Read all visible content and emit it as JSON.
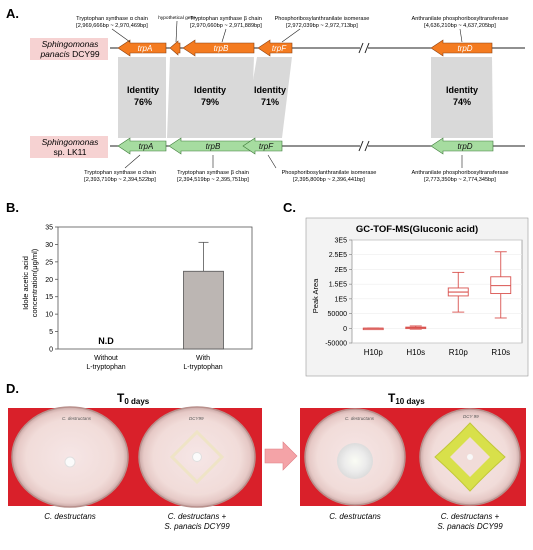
{
  "panel_a": {
    "panel_label": "A.",
    "top_strain": {
      "genus": "Sphingomonas",
      "species": "panacis",
      "strain": "DCY99"
    },
    "bottom_strain": {
      "genus": "Sphingomonas",
      "rest": "sp. LK11"
    },
    "top_genes": [
      {
        "name": "trpA",
        "desc": "Tryptophan synthase α chain",
        "coords": "[2,969,666bp ~ 2,970,469bp]"
      },
      {
        "name": "",
        "desc": "hypothetical gene",
        "coords": ""
      },
      {
        "name": "trpB",
        "desc": "Tryptophan synthase β chain",
        "coords": "[2,970,660bp ~ 2,971,889bp]"
      },
      {
        "name": "trpF",
        "desc": "Phosphoribosylanthranilate isomerase",
        "coords": "[2,972,039bp ~ 2,972,713bp]"
      },
      {
        "name": "trpD",
        "desc": "Anthranilate phosphoribosyltransferase",
        "coords": "[4,636,210bp ~ 4,637,205bp]"
      }
    ],
    "bottom_genes": [
      {
        "name": "trpA",
        "desc": "Tryptophan synthase α chain",
        "coords": "[2,393,710bp ~ 2,394,522bp]"
      },
      {
        "name": "trpB",
        "desc": "Tryptophan synthase β chain",
        "coords": "[2,394,519bp ~ 2,395,751bp]"
      },
      {
        "name": "trpF",
        "desc": "Phosphoribosylanthranilate isomerase",
        "coords": "[2,395,800bp ~ 2,396,441bp]"
      },
      {
        "name": "trpD",
        "desc": "Anthranilate phosphoribosyltransferase",
        "coords": "[2,773,350bp ~ 2,774,345bp]"
      }
    ],
    "identities": [
      {
        "label": "Identity",
        "value": "76%"
      },
      {
        "label": "Identity",
        "value": "79%"
      },
      {
        "label": "Identity",
        "value": "71%"
      },
      {
        "label": "Identity",
        "value": "74%"
      }
    ],
    "colors": {
      "top_arrow": "#f47b20",
      "bottom_arrow": "#a6dca0",
      "band": "#d9d9d9",
      "strain_bg": "#f6d2d2"
    }
  },
  "panel_b": {
    "panel_label": "B.",
    "chart_data": {
      "type": "bar",
      "ylabel_line1": "Idole acetic acid",
      "ylabel_line2": "concentration(μg/ml)",
      "ylim": [
        0,
        35
      ],
      "yticks": [
        0,
        5,
        10,
        15,
        20,
        25,
        30,
        35
      ],
      "categories": [
        {
          "line1": "Without",
          "line2": "L-tryptophan"
        },
        {
          "line1": "With",
          "line2": "L-tryptophan"
        }
      ],
      "values": [
        0,
        22.3
      ],
      "errors": [
        0,
        8.3
      ],
      "annotation": "N.D",
      "bar_color": "#bcb6b3"
    }
  },
  "panel_c": {
    "panel_label": "C.",
    "chart_data": {
      "type": "box",
      "title": "GC-TOF-MS(Gluconic acid)",
      "ylabel": "Peak Area",
      "ylim": [
        -50000,
        300000
      ],
      "yticks": [
        {
          "v": -50000,
          "t": "-50000"
        },
        {
          "v": 0,
          "t": "0"
        },
        {
          "v": 50000,
          "t": "50000"
        },
        {
          "v": 100000,
          "t": "1E5"
        },
        {
          "v": 150000,
          "t": "1.5E5"
        },
        {
          "v": 200000,
          "t": "2E5"
        },
        {
          "v": 250000,
          "t": "2.5E5"
        },
        {
          "v": 300000,
          "t": "3E5"
        }
      ],
      "categories": [
        "H10p",
        "H10s",
        "R10p",
        "R10s"
      ],
      "boxes": [
        {
          "min": -1000,
          "q1": -500,
          "median": 0,
          "q3": 500,
          "max": 1000
        },
        {
          "min": -3000,
          "q1": -1000,
          "median": 2000,
          "q3": 4000,
          "max": 8000
        },
        {
          "min": 55000,
          "q1": 110000,
          "median": 123000,
          "q3": 137000,
          "max": 190000
        },
        {
          "min": 35000,
          "q1": 118000,
          "median": 145000,
          "q3": 175000,
          "max": 260000
        }
      ],
      "box_color": "#d9534f"
    }
  },
  "panel_d": {
    "panel_label": "D.",
    "time_left": {
      "t": "T",
      "sub": "0 days"
    },
    "time_right": {
      "t": "T",
      "sub": "10 days"
    },
    "captions": [
      {
        "line1": "C. destructans",
        "line2": ""
      },
      {
        "line1": "C. destructans +",
        "line2": "S. panacis DCY99"
      },
      {
        "line1": "C. destructans",
        "line2": ""
      },
      {
        "line1": "C. destructans +",
        "line2": "S. panacis DCY99"
      }
    ],
    "plate_labels": [
      "C. destructans",
      "DCY99",
      "C. destructans",
      "DCY 99"
    ],
    "colors": {
      "background": "#d9202a",
      "arrow": "#f4a3a7",
      "halo": "#d8e04a"
    }
  }
}
